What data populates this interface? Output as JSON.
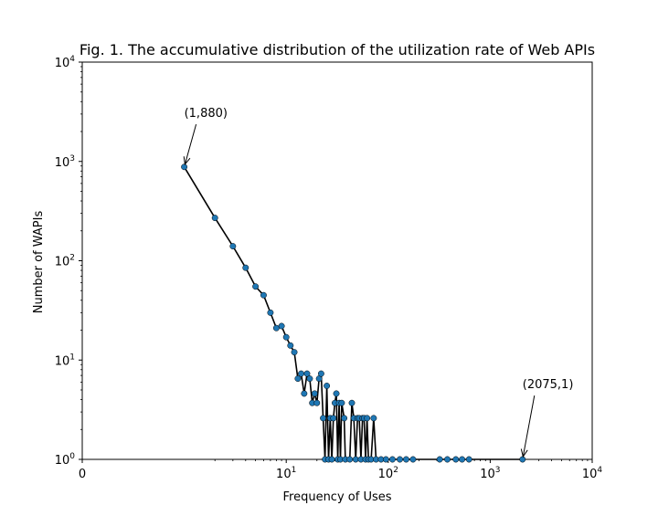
{
  "chart_data": {
    "type": "scatter",
    "title": "Fig. 1. The accumulative distribution of the utilization rate of Web APIs",
    "xlabel": "Frequency of Uses",
    "ylabel": "Number of WAPIs",
    "xscale": "symlog",
    "yscale": "log",
    "xlim": [
      0,
      10000
    ],
    "ylim": [
      1,
      10000
    ],
    "x_ticks": [
      {
        "value": 0,
        "base": "0",
        "exp": ""
      },
      {
        "value": 10,
        "base": "10",
        "exp": "1"
      },
      {
        "value": 100,
        "base": "10",
        "exp": "2"
      },
      {
        "value": 1000,
        "base": "10",
        "exp": "3"
      },
      {
        "value": 10000,
        "base": "10",
        "exp": "4"
      }
    ],
    "y_ticks": [
      {
        "value": 1,
        "base": "10",
        "exp": "0"
      },
      {
        "value": 10,
        "base": "10",
        "exp": "1"
      },
      {
        "value": 100,
        "base": "10",
        "exp": "2"
      },
      {
        "value": 1000,
        "base": "10",
        "exp": "3"
      },
      {
        "value": 10000,
        "base": "10",
        "exp": "4"
      }
    ],
    "marker_color": "#1f77b4",
    "line_color": "#000000",
    "points": [
      [
        1,
        880
      ],
      [
        2,
        270
      ],
      [
        3,
        140
      ],
      [
        4,
        85
      ],
      [
        5,
        55
      ],
      [
        6,
        45
      ],
      [
        7,
        30
      ],
      [
        8,
        21
      ],
      [
        9,
        22
      ],
      [
        10,
        17
      ],
      [
        11,
        14
      ],
      [
        12,
        12
      ],
      [
        13,
        6.5
      ],
      [
        14,
        7.3
      ],
      [
        15,
        4.6
      ],
      [
        16,
        7.3
      ],
      [
        17,
        6.5
      ],
      [
        18,
        3.7
      ],
      [
        19,
        4.6
      ],
      [
        20,
        3.7
      ],
      [
        21,
        6.5
      ],
      [
        22,
        7.3
      ],
      [
        23,
        2.6
      ],
      [
        24,
        1
      ],
      [
        25,
        5.5
      ],
      [
        26,
        1
      ],
      [
        27,
        2.6
      ],
      [
        28,
        1
      ],
      [
        29,
        2.6
      ],
      [
        30,
        3.7
      ],
      [
        31,
        4.6
      ],
      [
        32,
        1
      ],
      [
        33,
        3.7
      ],
      [
        34,
        1
      ],
      [
        35,
        3.7
      ],
      [
        37,
        2.6
      ],
      [
        38,
        1
      ],
      [
        42,
        1
      ],
      [
        44,
        3.7
      ],
      [
        46,
        2.6
      ],
      [
        48,
        1
      ],
      [
        50,
        2.6
      ],
      [
        52,
        2.6
      ],
      [
        54,
        1
      ],
      [
        56,
        2.6
      ],
      [
        58,
        2.6
      ],
      [
        60,
        1
      ],
      [
        62,
        2.6
      ],
      [
        64,
        1
      ],
      [
        68,
        1
      ],
      [
        72,
        2.6
      ],
      [
        76,
        1
      ],
      [
        85,
        1
      ],
      [
        95,
        1
      ],
      [
        110,
        1
      ],
      [
        130,
        1
      ],
      [
        150,
        1
      ],
      [
        175,
        1
      ],
      [
        320,
        1
      ],
      [
        380,
        1
      ],
      [
        460,
        1
      ],
      [
        530,
        1
      ],
      [
        620,
        1
      ],
      [
        2075,
        1
      ]
    ],
    "annotations": [
      {
        "text": "(1,880)",
        "x": 1,
        "y": 880,
        "text_x": 1,
        "text_y": 2800
      },
      {
        "text": "(2075,1)",
        "x": 2075,
        "y": 1,
        "text_x": 2075,
        "text_y": 5.2
      }
    ]
  }
}
